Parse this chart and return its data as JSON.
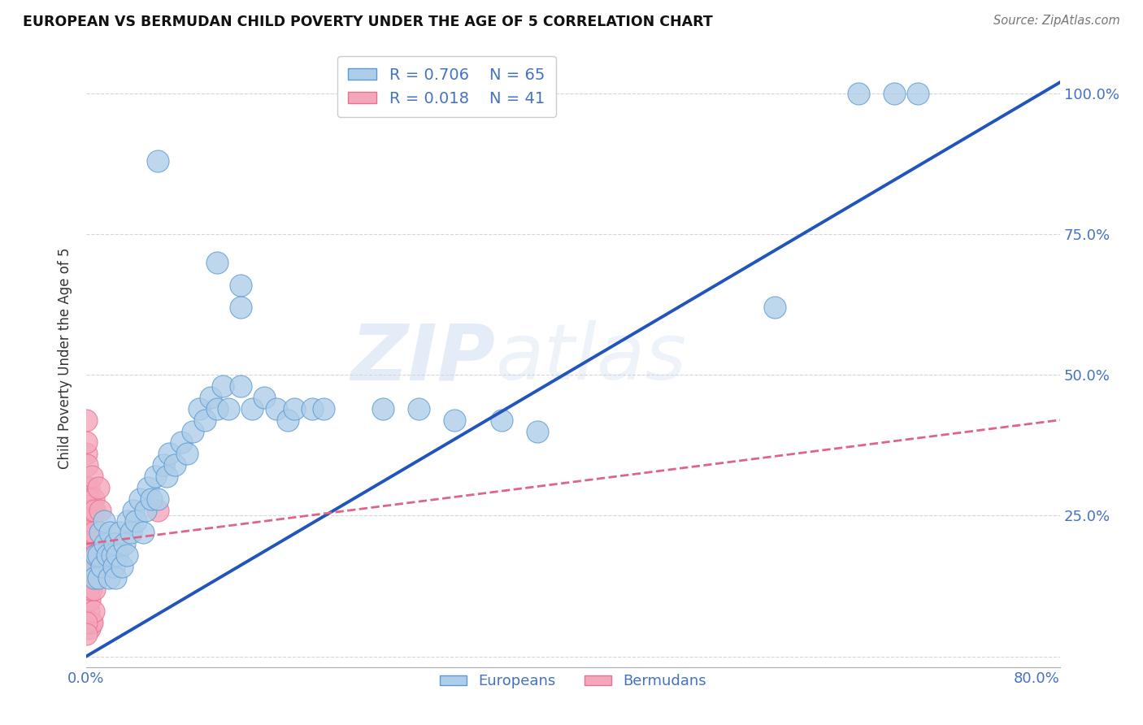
{
  "title": "EUROPEAN VS BERMUDAN CHILD POVERTY UNDER THE AGE OF 5 CORRELATION CHART",
  "source": "Source: ZipAtlas.com",
  "ylabel": "Child Poverty Under the Age of 5",
  "watermark_zip": "ZIP",
  "watermark_atlas": "atlas",
  "xlim": [
    0.0,
    0.82
  ],
  "ylim": [
    -0.02,
    1.08
  ],
  "xticks": [
    0.0,
    0.2,
    0.4,
    0.6,
    0.8
  ],
  "xtick_labels": [
    "0.0%",
    "",
    "",
    "",
    "80.0%"
  ],
  "yticks": [
    0.0,
    0.25,
    0.5,
    0.75,
    1.0
  ],
  "ytick_labels": [
    "",
    "25.0%",
    "50.0%",
    "75.0%",
    "100.0%"
  ],
  "european_color": "#aecde8",
  "bermudan_color": "#f4a7bb",
  "european_edge_color": "#5b9bd5",
  "bermudan_edge_color": "#e87090",
  "european_line_color": "#2255bb",
  "bermudan_line_color": "#dd6688",
  "tick_color": "#4472c4",
  "background_color": "#ffffff",
  "grid_color": "#cccccc",
  "eu_line_x0": 0.0,
  "eu_line_y0": 0.0,
  "eu_line_x1": 0.82,
  "eu_line_y1": 1.02,
  "be_line_x0": 0.0,
  "be_line_y0": 0.2,
  "be_line_x1": 0.82,
  "be_line_y1": 0.42,
  "europeans_scatter": [
    [
      0.005,
      0.16
    ],
    [
      0.007,
      0.14
    ],
    [
      0.008,
      0.18
    ],
    [
      0.01,
      0.14
    ],
    [
      0.01,
      0.18
    ],
    [
      0.012,
      0.22
    ],
    [
      0.013,
      0.16
    ],
    [
      0.015,
      0.24
    ],
    [
      0.016,
      0.2
    ],
    [
      0.018,
      0.18
    ],
    [
      0.019,
      0.14
    ],
    [
      0.02,
      0.22
    ],
    [
      0.022,
      0.18
    ],
    [
      0.023,
      0.16
    ],
    [
      0.024,
      0.2
    ],
    [
      0.025,
      0.14
    ],
    [
      0.026,
      0.18
    ],
    [
      0.028,
      0.22
    ],
    [
      0.03,
      0.16
    ],
    [
      0.032,
      0.2
    ],
    [
      0.034,
      0.18
    ],
    [
      0.035,
      0.24
    ],
    [
      0.038,
      0.22
    ],
    [
      0.04,
      0.26
    ],
    [
      0.042,
      0.24
    ],
    [
      0.045,
      0.28
    ],
    [
      0.048,
      0.22
    ],
    [
      0.05,
      0.26
    ],
    [
      0.052,
      0.3
    ],
    [
      0.055,
      0.28
    ],
    [
      0.058,
      0.32
    ],
    [
      0.06,
      0.28
    ],
    [
      0.065,
      0.34
    ],
    [
      0.068,
      0.32
    ],
    [
      0.07,
      0.36
    ],
    [
      0.075,
      0.34
    ],
    [
      0.08,
      0.38
    ],
    [
      0.085,
      0.36
    ],
    [
      0.09,
      0.4
    ],
    [
      0.095,
      0.44
    ],
    [
      0.1,
      0.42
    ],
    [
      0.105,
      0.46
    ],
    [
      0.11,
      0.44
    ],
    [
      0.115,
      0.48
    ],
    [
      0.12,
      0.44
    ],
    [
      0.13,
      0.48
    ],
    [
      0.14,
      0.44
    ],
    [
      0.15,
      0.46
    ],
    [
      0.16,
      0.44
    ],
    [
      0.17,
      0.42
    ],
    [
      0.175,
      0.44
    ],
    [
      0.19,
      0.44
    ],
    [
      0.2,
      0.44
    ],
    [
      0.25,
      0.44
    ],
    [
      0.28,
      0.44
    ],
    [
      0.31,
      0.42
    ],
    [
      0.35,
      0.42
    ],
    [
      0.38,
      0.4
    ],
    [
      0.06,
      0.88
    ],
    [
      0.11,
      0.7
    ],
    [
      0.13,
      0.66
    ],
    [
      0.13,
      0.62
    ],
    [
      0.58,
      0.62
    ],
    [
      0.65,
      1.0
    ],
    [
      0.68,
      1.0
    ],
    [
      0.7,
      1.0
    ]
  ],
  "bermudans_scatter": [
    [
      0.0,
      0.36
    ],
    [
      0.0,
      0.3
    ],
    [
      0.0,
      0.26
    ],
    [
      0.001,
      0.34
    ],
    [
      0.001,
      0.28
    ],
    [
      0.001,
      0.24
    ],
    [
      0.001,
      0.2
    ],
    [
      0.001,
      0.16
    ],
    [
      0.002,
      0.3
    ],
    [
      0.002,
      0.24
    ],
    [
      0.002,
      0.18
    ],
    [
      0.002,
      0.12
    ],
    [
      0.002,
      0.08
    ],
    [
      0.003,
      0.28
    ],
    [
      0.003,
      0.22
    ],
    [
      0.003,
      0.16
    ],
    [
      0.003,
      0.1
    ],
    [
      0.003,
      0.05
    ],
    [
      0.004,
      0.24
    ],
    [
      0.004,
      0.18
    ],
    [
      0.004,
      0.12
    ],
    [
      0.004,
      0.06
    ],
    [
      0.005,
      0.32
    ],
    [
      0.005,
      0.26
    ],
    [
      0.005,
      0.2
    ],
    [
      0.005,
      0.14
    ],
    [
      0.005,
      0.06
    ],
    [
      0.006,
      0.28
    ],
    [
      0.006,
      0.22
    ],
    [
      0.006,
      0.16
    ],
    [
      0.006,
      0.08
    ],
    [
      0.007,
      0.26
    ],
    [
      0.007,
      0.18
    ],
    [
      0.007,
      0.12
    ],
    [
      0.0,
      0.06
    ],
    [
      0.0,
      0.04
    ],
    [
      0.0,
      0.38
    ],
    [
      0.0,
      0.42
    ],
    [
      0.01,
      0.3
    ],
    [
      0.012,
      0.26
    ],
    [
      0.06,
      0.26
    ]
  ]
}
